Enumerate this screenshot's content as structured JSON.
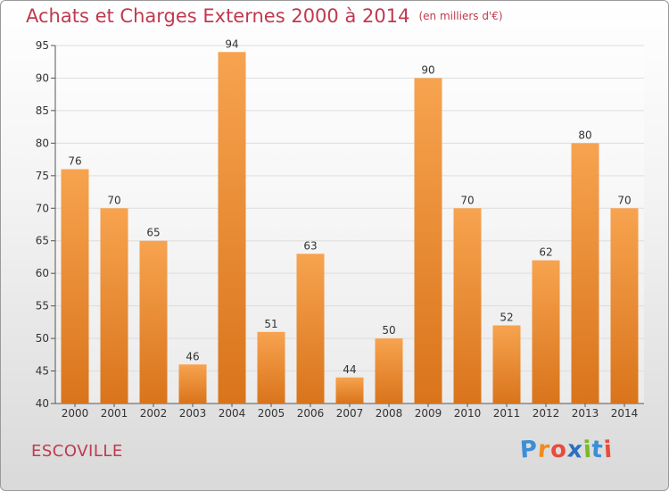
{
  "title": "Achats et Charges Externes 2000 à 2014",
  "unit": "(en milliers d'€)",
  "place": "ESCOVILLE",
  "logo": {
    "letters": [
      "P",
      "r",
      "o",
      "x",
      "i",
      "t",
      "i"
    ],
    "colors": [
      "#3a8fd6",
      "#f28a1e",
      "#e94b3c",
      "#2c6fbf",
      "#7ab929",
      "#3a8fd6",
      "#e94b3c"
    ]
  },
  "colors": {
    "bar_top": "#f7a34f",
    "bar_bottom": "#d9741b",
    "title": "#c0394f",
    "grid": "#dddddd"
  },
  "chart_data": {
    "type": "bar",
    "categories": [
      "2000",
      "2001",
      "2002",
      "2003",
      "2004",
      "2005",
      "2006",
      "2007",
      "2008",
      "2009",
      "2010",
      "2011",
      "2012",
      "2013",
      "2014"
    ],
    "values": [
      76,
      70,
      65,
      46,
      94,
      51,
      63,
      44,
      50,
      90,
      70,
      52,
      62,
      80,
      70
    ],
    "ylim": [
      40,
      95
    ],
    "yticks": [
      40,
      45,
      50,
      55,
      60,
      65,
      70,
      75,
      80,
      85,
      90,
      95
    ],
    "grid": true
  }
}
